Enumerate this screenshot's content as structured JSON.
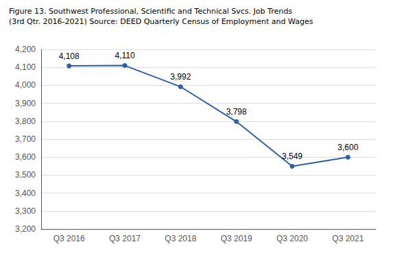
{
  "chart_data": {
    "type": "line",
    "title": "Figure 13. Southwest Professional, Scientific and Technical Svcs. Job Trends",
    "subtitle": "(3rd Qtr. 2016-2021) Source: DEED Quarterly Census of Employment and Wages",
    "categories": [
      "Q3 2016",
      "Q3 2017",
      "Q3 2018",
      "Q3 2019",
      "Q3 2020",
      "Q3 2021"
    ],
    "values": [
      4108,
      4110,
      3992,
      3798,
      3549,
      3600
    ],
    "value_labels": [
      "4,108",
      "4,110",
      "3,992",
      "3,798",
      "3,549",
      "3,600"
    ],
    "data_labels": true,
    "color": "#2E5FA3",
    "marker": "circle",
    "ylim": [
      3200,
      4200
    ],
    "yticks": [
      {
        "value": 3200,
        "label": "3,200"
      },
      {
        "value": 3300,
        "label": "3,300"
      },
      {
        "value": 3400,
        "label": "3,400"
      },
      {
        "value": 3500,
        "label": "3,500"
      },
      {
        "value": 3600,
        "label": "3,600"
      },
      {
        "value": 3700,
        "label": "3,700"
      },
      {
        "value": 3800,
        "label": "3,800"
      },
      {
        "value": 3900,
        "label": "3,900"
      },
      {
        "value": 4000,
        "label": "4,000"
      },
      {
        "value": 4100,
        "label": "4,100"
      },
      {
        "value": 4200,
        "label": "4,200"
      }
    ],
    "grid": true
  }
}
